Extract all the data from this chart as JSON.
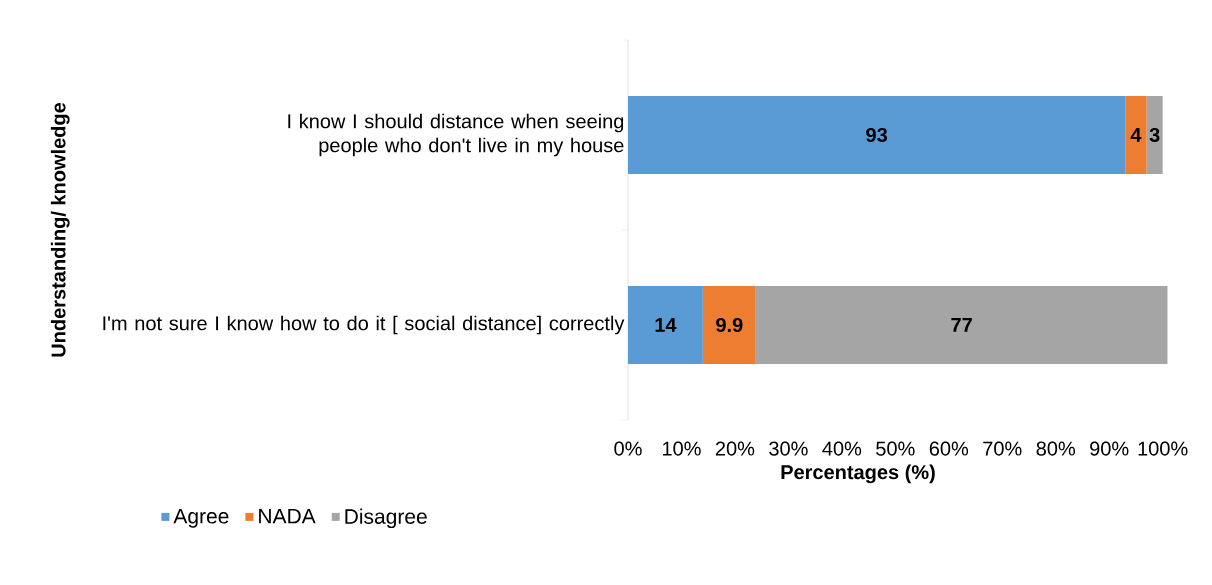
{
  "chart_data": {
    "type": "bar",
    "orientation": "horizontal",
    "stacked": true,
    "categories": [
      "I know I should distance when seeing people who don't live in my house",
      "I'm not sure I know how to do it [ social distance] correctly"
    ],
    "series": [
      {
        "name": "Agree",
        "color": "#5b9bd5",
        "values": [
          93,
          14
        ]
      },
      {
        "name": "NADA",
        "color": "#ed7d31",
        "values": [
          4,
          9.9
        ]
      },
      {
        "name": "Disagree",
        "color": "#a5a5a5",
        "values": [
          3,
          77
        ]
      }
    ],
    "xlabel": "Percentages (%)",
    "ylabel": "Understanding/ knowledge",
    "xlim": [
      0,
      101
    ],
    "xticks": [
      {
        "value": 0,
        "label": "0%"
      },
      {
        "value": 10,
        "label": "10%"
      },
      {
        "value": 20,
        "label": "20%"
      },
      {
        "value": 30,
        "label": "30%"
      },
      {
        "value": 40,
        "label": "40%"
      },
      {
        "value": 50,
        "label": "50%"
      },
      {
        "value": 60,
        "label": "60%"
      },
      {
        "value": 70,
        "label": "70%"
      },
      {
        "value": 80,
        "label": "80%"
      },
      {
        "value": 90,
        "label": "90%"
      },
      {
        "value": 100,
        "label": "100%"
      }
    ],
    "data_labels": true,
    "legend": "bottom left"
  }
}
